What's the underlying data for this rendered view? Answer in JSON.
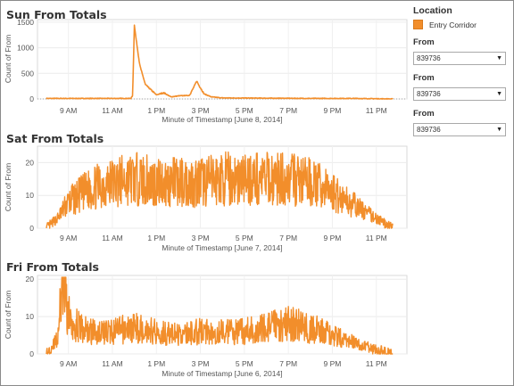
{
  "charts": [
    {
      "title": "Sun From Totals",
      "xlabel": "Minute of Timestamp [June 8, 2014]",
      "ylabel": "Count of From",
      "yticks": [
        "1500",
        "1000",
        "500",
        "0"
      ],
      "xticks": [
        "9 AM",
        "11 AM",
        "1 PM",
        "3 PM",
        "5 PM",
        "7 PM",
        "9 PM",
        "11 PM"
      ]
    },
    {
      "title": "Sat From Totals",
      "xlabel": "Minute of Timestamp [June 7, 2014]",
      "ylabel": "Count of From",
      "yticks": [
        "20",
        "10",
        "0"
      ],
      "xticks": [
        "9 AM",
        "11 AM",
        "1 PM",
        "3 PM",
        "5 PM",
        "7 PM",
        "9 PM",
        "11 PM"
      ]
    },
    {
      "title": "Fri From Totals",
      "xlabel": "Minute of Timestamp [June 6, 2014]",
      "ylabel": "Count of From",
      "yticks": [
        "20",
        "10",
        "0"
      ],
      "xticks": [
        "9 AM",
        "11 AM",
        "1 PM",
        "3 PM",
        "5 PM",
        "7 PM",
        "9 PM",
        "11 PM"
      ]
    }
  ],
  "sidebar": {
    "legend_title": "Location",
    "legend_item": "Entry Corridor",
    "legend_color": "#f28e2b",
    "filters": [
      {
        "label": "From",
        "value": "839736"
      },
      {
        "label": "From",
        "value": "839736"
      },
      {
        "label": "From",
        "value": "839736"
      }
    ]
  },
  "chart_data": [
    {
      "type": "line",
      "title": "Sun From Totals",
      "xlabel": "Minute of Timestamp [June 8, 2014]",
      "ylabel": "Count of From",
      "ylim": [
        0,
        1550
      ],
      "x_range": [
        "8:00 AM",
        "11:45 PM"
      ],
      "series": [
        {
          "name": "Entry Corridor",
          "x": [
            "8:00 AM",
            "11:50 AM",
            "11:55 AM",
            "12:00 PM",
            "12:05 PM",
            "12:15 PM",
            "12:30 PM",
            "1:00 PM",
            "1:20 PM",
            "1:40 PM",
            "2:00 PM",
            "2:30 PM",
            "2:40 PM",
            "2:50 PM",
            "2:55 PM",
            "3:00 PM",
            "3:10 PM",
            "3:30 PM",
            "4:00 PM",
            "6:00 PM",
            "8:00 PM",
            "10:00 PM",
            "11:45 PM"
          ],
          "values": [
            10,
            10,
            60,
            1450,
            1150,
            650,
            280,
            80,
            120,
            40,
            60,
            70,
            200,
            350,
            280,
            220,
            100,
            40,
            20,
            15,
            10,
            10,
            0
          ]
        }
      ]
    },
    {
      "type": "line",
      "title": "Sat From Totals",
      "xlabel": "Minute of Timestamp [June 7, 2014]",
      "ylabel": "Count of From",
      "ylim": [
        0,
        25
      ],
      "x_range": [
        "8:00 AM",
        "11:45 PM"
      ],
      "series": [
        {
          "name": "Entry Corridor",
          "x": [
            "8:00 AM",
            "8:30 AM",
            "9:00 AM",
            "10:00 AM",
            "11:00 AM",
            "12:00 PM",
            "1:00 PM",
            "2:00 PM",
            "3:00 PM",
            "4:00 PM",
            "5:00 PM",
            "6:00 PM",
            "7:00 PM",
            "8:00 PM",
            "9:00 PM",
            "10:00 PM",
            "11:00 PM",
            "11:45 PM"
          ],
          "values": [
            0,
            3,
            8,
            12,
            14,
            15,
            14,
            14,
            14,
            15,
            15,
            15,
            15,
            14,
            11,
            7,
            3,
            0
          ]
        }
      ]
    },
    {
      "type": "line",
      "title": "Fri From Totals",
      "xlabel": "Minute of Timestamp [June 6, 2014]",
      "ylabel": "Count of From",
      "ylim": [
        0,
        21
      ],
      "x_range": [
        "8:00 AM",
        "11:45 PM"
      ],
      "series": [
        {
          "name": "Entry Corridor",
          "x": [
            "8:00 AM",
            "8:30 AM",
            "8:45 AM",
            "9:00 AM",
            "9:30 AM",
            "10:00 AM",
            "11:00 AM",
            "12:00 PM",
            "1:00 PM",
            "2:00 PM",
            "3:00 PM",
            "4:00 PM",
            "5:00 PM",
            "6:00 PM",
            "7:00 PM",
            "8:00 PM",
            "9:00 PM",
            "10:00 PM",
            "11:00 PM",
            "11:45 PM"
          ],
          "values": [
            0,
            4,
            20,
            10,
            7,
            6,
            6,
            7,
            6,
            5,
            6,
            6,
            6,
            7,
            8,
            7,
            5,
            3,
            1,
            0
          ]
        }
      ]
    }
  ]
}
